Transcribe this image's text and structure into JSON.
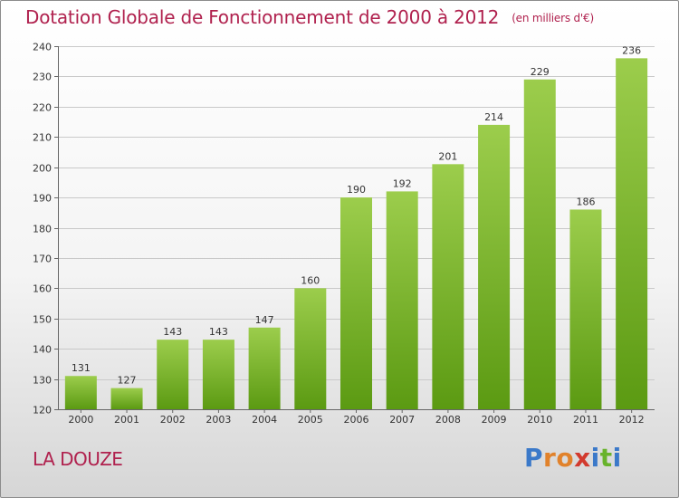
{
  "header": {
    "title": "Dotation Globale de Fonctionnement de 2000 à 2012",
    "unit": "(en milliers d'€)"
  },
  "footer": {
    "commune": "LA DOUZE",
    "logo_text": "Proxiti"
  },
  "colors": {
    "title": "#b0214e",
    "bar_top": "#9ccd4c",
    "bar_bottom": "#5b9a12",
    "logo": [
      "#3b79c9",
      "#e1822b",
      "#e1822b",
      "#d23a2e",
      "#3b79c9",
      "#68b32c",
      "#3b79c9"
    ]
  },
  "chart_data": {
    "type": "bar",
    "categories": [
      "2000",
      "2001",
      "2002",
      "2003",
      "2004",
      "2005",
      "2006",
      "2007",
      "2008",
      "2009",
      "2010",
      "2011",
      "2012"
    ],
    "values": [
      131,
      127,
      143,
      143,
      147,
      160,
      190,
      192,
      201,
      214,
      229,
      186,
      236
    ],
    "title": "Dotation Globale de Fonctionnement de 2000 à 2012",
    "xlabel": "",
    "ylabel": "",
    "ylim": [
      120,
      240
    ],
    "yticks": [
      120,
      130,
      140,
      150,
      160,
      170,
      180,
      190,
      200,
      210,
      220,
      230,
      240
    ],
    "grid": true,
    "data_labels": true
  }
}
